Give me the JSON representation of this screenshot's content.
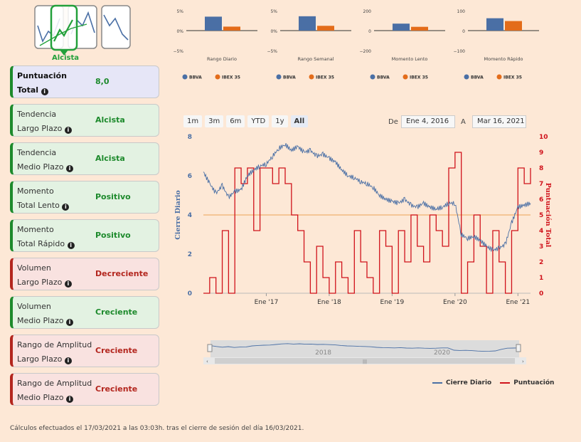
{
  "signal": {
    "label": "Alcista"
  },
  "cards": [
    {
      "title1": "Puntuación",
      "title2": "Total",
      "value": "8,0",
      "style": "blue",
      "bold": true
    },
    {
      "title1": "Tendencia",
      "title2": "Largo Plazo",
      "value": "Alcista",
      "style": "green"
    },
    {
      "title1": "Tendencia",
      "title2": "Medio Plazo",
      "value": "Alcista",
      "style": "green"
    },
    {
      "title1": "Momento",
      "title2": "Total Lento",
      "value": "Positivo",
      "style": "green"
    },
    {
      "title1": "Momento",
      "title2": "Total Rápido",
      "value": "Positivo",
      "style": "green"
    },
    {
      "title1": "Volumen",
      "title2": "Largo Plazo",
      "value": "Decreciente",
      "style": "red"
    },
    {
      "title1": "Volumen",
      "title2": "Medio Plazo",
      "value": "Creciente",
      "style": "green"
    },
    {
      "title1": "Rango de Amplitud",
      "title2": "Largo Plazo",
      "value": "Creciente",
      "style": "red"
    },
    {
      "title1": "Rango de Amplitud",
      "title2": "Medio Plazo",
      "value": "Creciente",
      "style": "red"
    }
  ],
  "colors": {
    "bbva": "#4a6fa5",
    "ibex": "#e36c1a",
    "score": "#d0121b",
    "close": "#4a6fa5",
    "threshold": "#f0b070"
  },
  "range_buttons": [
    "1m",
    "3m",
    "6m",
    "YTD",
    "1y",
    "All"
  ],
  "range_active": "All",
  "date_range": {
    "from_label": "De",
    "from": "Ene 4, 2016",
    "to_label": "A",
    "to": "Mar 16, 2021"
  },
  "footer": "Cálculos efectuados el 17/03/2021 a las 03:03h. tras el cierre de sesión del día 16/03/2021.",
  "chart_data": [
    {
      "type": "bar",
      "title": "Rango Diario",
      "y_ticks": [
        "5%",
        "0%",
        "−5%"
      ],
      "ylim": [
        -5,
        5
      ],
      "series": [
        {
          "name": "BBVA",
          "values": [
            3.5
          ]
        },
        {
          "name": "IBEX 35",
          "values": [
            1.0
          ]
        }
      ]
    },
    {
      "type": "bar",
      "title": "Rango Semanal",
      "y_ticks": [
        "5%",
        "0%",
        "−5%"
      ],
      "ylim": [
        -5,
        5
      ],
      "series": [
        {
          "name": "BBVA",
          "values": [
            3.6
          ]
        },
        {
          "name": "IBEX 35",
          "values": [
            1.2
          ]
        }
      ]
    },
    {
      "type": "bar",
      "title": "Momento Lento",
      "y_ticks": [
        "200",
        "0",
        "−200"
      ],
      "ylim": [
        -200,
        200
      ],
      "series": [
        {
          "name": "BBVA",
          "values": [
            70
          ]
        },
        {
          "name": "IBEX 35",
          "values": [
            38
          ]
        }
      ]
    },
    {
      "type": "bar",
      "title": "Momento Rápido",
      "y_ticks": [
        "100",
        "0",
        "−100"
      ],
      "ylim": [
        -100,
        100
      ],
      "series": [
        {
          "name": "BBVA",
          "values": [
            62
          ]
        },
        {
          "name": "IBEX 35",
          "values": [
            48
          ]
        }
      ]
    },
    {
      "type": "line",
      "y_left_label": "Cierre Diario",
      "y_right_label": "Puntuación Total",
      "y_left_ticks": [
        "0",
        "2",
        "4",
        "6",
        "8"
      ],
      "y_left_lim": [
        0,
        8
      ],
      "y_right_ticks": [
        "0",
        "1",
        "2",
        "3",
        "4",
        "5",
        "6",
        "7",
        "8",
        "9",
        "10"
      ],
      "y_right_lim": [
        0,
        10
      ],
      "x_ticks": [
        "Ene '17",
        "Ene '18",
        "Ene '19",
        "Ene '20",
        "Ene '21"
      ],
      "x_tick_pos": [
        1.0,
        2.0,
        3.0,
        4.0,
        5.0
      ],
      "xlim": [
        0,
        5.2
      ],
      "threshold": 4.0,
      "navigator_labels": [
        "2018",
        "2020"
      ],
      "legend": [
        "Cierre Diario",
        "Puntuación"
      ],
      "series": [
        {
          "name": "Cierre Diario",
          "axis": "left",
          "x": [
            0,
            0.1,
            0.2,
            0.3,
            0.4,
            0.5,
            0.6,
            0.7,
            0.8,
            0.9,
            1.0,
            1.1,
            1.2,
            1.3,
            1.4,
            1.5,
            1.6,
            1.7,
            1.8,
            1.9,
            2.0,
            2.1,
            2.2,
            2.3,
            2.4,
            2.5,
            2.6,
            2.7,
            2.8,
            2.9,
            3.0,
            3.1,
            3.2,
            3.3,
            3.4,
            3.5,
            3.6,
            3.7,
            3.8,
            3.9,
            4.0,
            4.1,
            4.2,
            4.3,
            4.4,
            4.5,
            4.6,
            4.7,
            4.8,
            4.9,
            5.0,
            5.1,
            5.2
          ],
          "values": [
            6.2,
            5.6,
            5.1,
            5.5,
            4.9,
            5.2,
            5.3,
            6.0,
            6.3,
            6.5,
            6.6,
            7.0,
            7.4,
            7.6,
            7.3,
            7.5,
            7.2,
            7.3,
            7.0,
            7.1,
            6.9,
            6.7,
            6.3,
            6.0,
            5.9,
            5.7,
            5.6,
            5.4,
            5.0,
            4.8,
            4.7,
            4.6,
            4.8,
            4.5,
            4.4,
            4.6,
            4.4,
            4.3,
            4.4,
            4.6,
            4.6,
            3.0,
            2.8,
            2.9,
            2.7,
            2.4,
            2.2,
            2.3,
            2.5,
            3.6,
            4.4,
            4.5,
            4.6
          ]
        },
        {
          "name": "Puntuación",
          "axis": "right",
          "x": [
            0,
            0.1,
            0.2,
            0.3,
            0.4,
            0.5,
            0.6,
            0.7,
            0.8,
            0.9,
            1.0,
            1.1,
            1.2,
            1.3,
            1.4,
            1.5,
            1.6,
            1.7,
            1.8,
            1.9,
            2.0,
            2.1,
            2.2,
            2.3,
            2.4,
            2.5,
            2.6,
            2.7,
            2.8,
            2.9,
            3.0,
            3.1,
            3.2,
            3.3,
            3.4,
            3.5,
            3.6,
            3.7,
            3.8,
            3.9,
            4.0,
            4.1,
            4.2,
            4.3,
            4.4,
            4.5,
            4.6,
            4.7,
            4.8,
            4.9,
            5.0,
            5.1,
            5.2
          ],
          "values": [
            0,
            1,
            0,
            4,
            0,
            8,
            7,
            8,
            4,
            8,
            8,
            7,
            8,
            7,
            5,
            4,
            2,
            0,
            3,
            1,
            0,
            2,
            1,
            0,
            4,
            2,
            1,
            0,
            4,
            3,
            0,
            4,
            2,
            5,
            3,
            2,
            5,
            4,
            3,
            8,
            9,
            0,
            2,
            5,
            3,
            0,
            4,
            2,
            0,
            4,
            8,
            7,
            8
          ]
        }
      ]
    }
  ]
}
